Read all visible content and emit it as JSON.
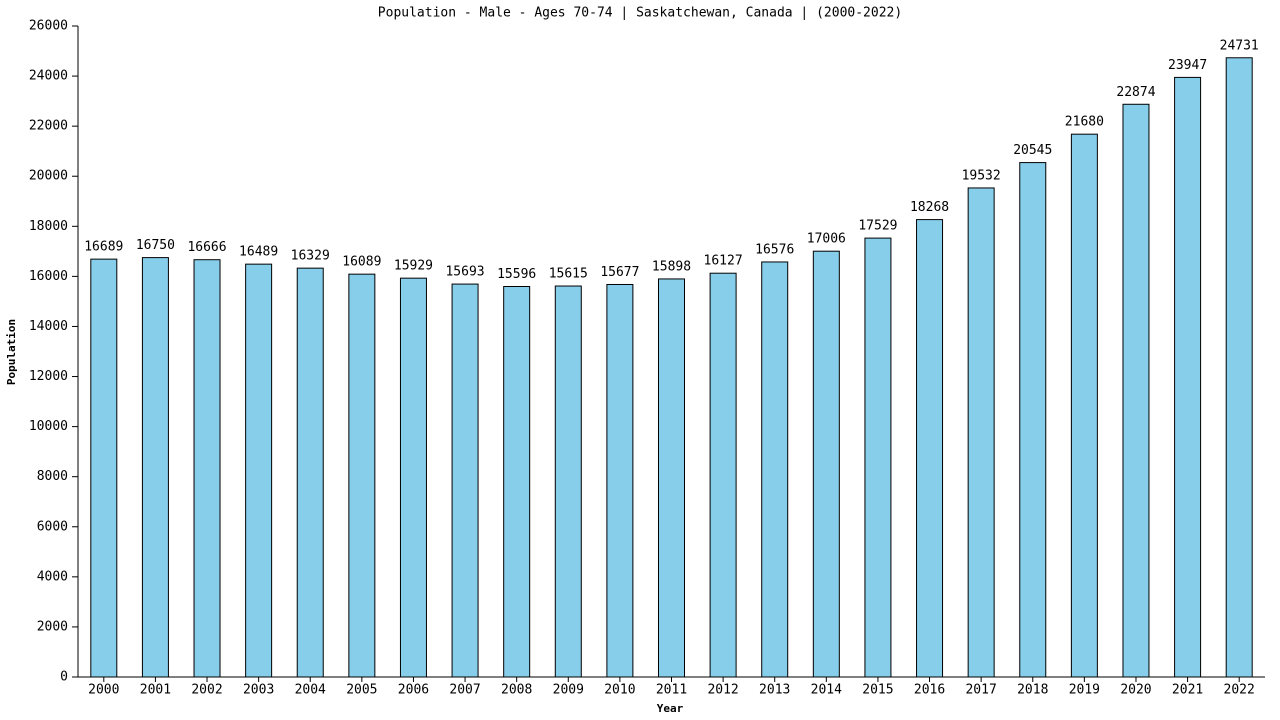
{
  "chart_data": {
    "type": "bar",
    "title": "Population - Male - Ages 70-74 | Saskatchewan, Canada |  (2000-2022)",
    "x_label": "Year",
    "y_label": "Population",
    "categories": [
      "2000",
      "2001",
      "2002",
      "2003",
      "2004",
      "2005",
      "2006",
      "2007",
      "2008",
      "2009",
      "2010",
      "2011",
      "2012",
      "2013",
      "2014",
      "2015",
      "2016",
      "2017",
      "2018",
      "2019",
      "2020",
      "2021",
      "2022"
    ],
    "values": [
      16689,
      16750,
      16666,
      16489,
      16329,
      16089,
      15929,
      15693,
      15596,
      15615,
      15677,
      15898,
      16127,
      16576,
      17006,
      17529,
      18268,
      19532,
      20545,
      21680,
      22874,
      23947,
      24731
    ],
    "color": "#87ceeb",
    "ylim": [
      0,
      26000
    ],
    "yticks": [
      0,
      2000,
      4000,
      6000,
      8000,
      10000,
      12000,
      14000,
      16000,
      18000,
      20000,
      22000,
      24000,
      26000
    ],
    "grid": false
  }
}
